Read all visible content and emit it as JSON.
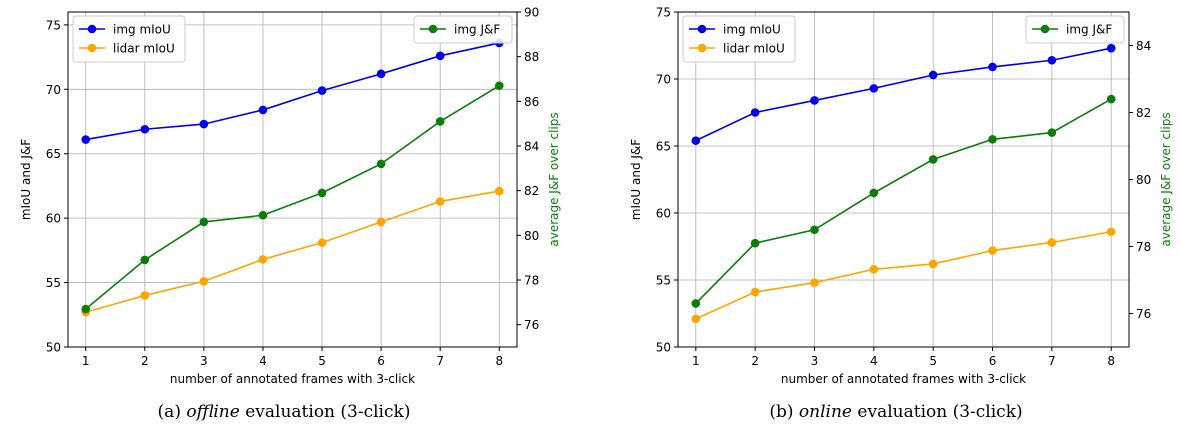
{
  "chart_data": [
    {
      "type": "line",
      "x": [
        1,
        2,
        3,
        4,
        5,
        6,
        7,
        8
      ],
      "xlabel": "number of annotated frames with 3-click",
      "ylabel": "mIoU and J&F",
      "ylabel_right": "average J&F over clips",
      "ylim": [
        50,
        76
      ],
      "yticks": [
        50,
        55,
        60,
        65,
        70,
        75
      ],
      "ylim_right": [
        75,
        90
      ],
      "yticks_right": [
        76,
        78,
        80,
        82,
        84,
        86,
        88,
        90
      ],
      "grid": true,
      "legend_left": "top-left",
      "legend_right": "top-right",
      "series": [
        {
          "name": "img mIoU",
          "axis": "left",
          "color": "#0000ee",
          "values": [
            66.1,
            66.9,
            67.3,
            68.4,
            69.9,
            71.2,
            72.6,
            73.6
          ]
        },
        {
          "name": "lidar mIoU",
          "axis": "left",
          "color": "#ffa500",
          "values": [
            52.7,
            54.0,
            55.1,
            56.8,
            58.1,
            59.7,
            61.3,
            62.1
          ]
        },
        {
          "name": "img J&F",
          "axis": "right",
          "color": "#0a7d0a",
          "values": [
            76.7,
            78.9,
            80.6,
            80.9,
            81.9,
            83.2,
            85.1,
            86.7
          ]
        }
      ],
      "caption_prefix": "(a)",
      "caption_emph": "offline",
      "caption_rest": "evaluation (3-click)"
    },
    {
      "type": "line",
      "x": [
        1,
        2,
        3,
        4,
        5,
        6,
        7,
        8
      ],
      "xlabel": "number of annotated frames with 3-click",
      "ylabel": "mIoU and J&F",
      "ylabel_right": "average J&F over clips",
      "ylim": [
        50,
        75
      ],
      "yticks": [
        50,
        55,
        60,
        65,
        70,
        75
      ],
      "ylim_right": [
        75,
        85
      ],
      "yticks_right": [
        76,
        78,
        80,
        82,
        84
      ],
      "grid": true,
      "legend_left": "top-left",
      "legend_right": "top-right",
      "series": [
        {
          "name": "img mIoU",
          "axis": "left",
          "color": "#0000ee",
          "values": [
            65.4,
            67.5,
            68.4,
            69.3,
            70.3,
            70.9,
            71.4,
            72.3
          ]
        },
        {
          "name": "lidar mIoU",
          "axis": "left",
          "color": "#ffa500",
          "values": [
            52.1,
            54.1,
            54.8,
            55.8,
            56.2,
            57.2,
            57.8,
            58.6
          ]
        },
        {
          "name": "img J&F",
          "axis": "right",
          "color": "#0a7d0a",
          "values": [
            76.3,
            78.1,
            78.5,
            79.6,
            80.6,
            81.2,
            81.4,
            82.4
          ]
        }
      ],
      "caption_prefix": "(b)",
      "caption_emph": "online",
      "caption_rest": "evaluation (3-click)"
    }
  ]
}
